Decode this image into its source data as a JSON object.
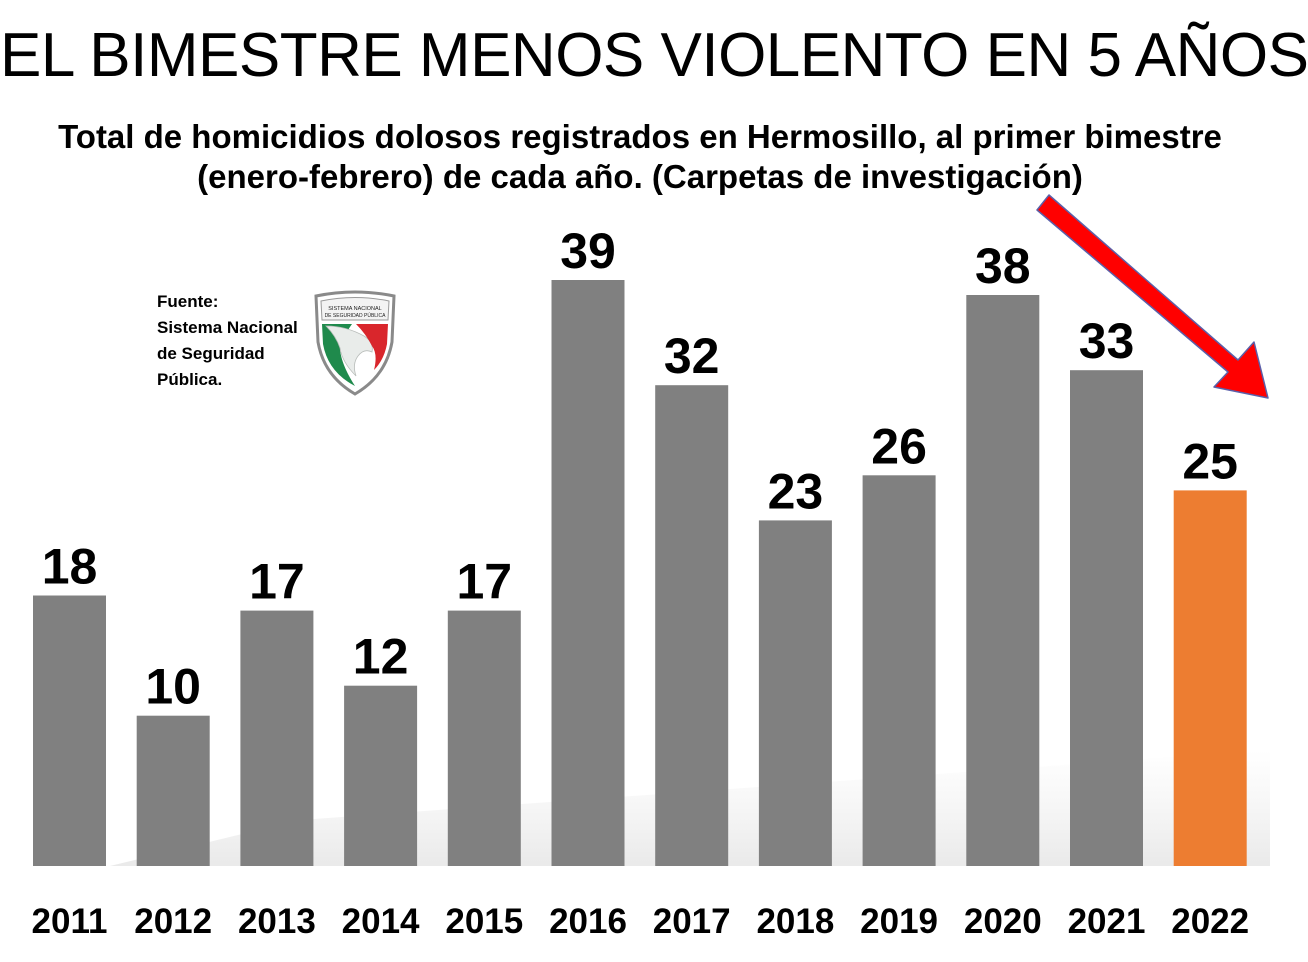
{
  "title": "EL BIMESTRE MENOS VIOLENTO EN 5 AÑOS",
  "subtitle": "Total de homicidios dolosos registrados en Hermosillo, al primer bimestre (enero-febrero) de cada año. (Carpetas de investigación)",
  "source": {
    "lines": [
      "Fuente:",
      "Sistema Nacional",
      "de Seguridad",
      "Pública."
    ],
    "logo_text": "SISTEMA NACIONAL DE SEGURIDAD PÚBLICA"
  },
  "colors": {
    "bar": "#808080",
    "highlight": "#ed7d31",
    "arrow": "#ff0000",
    "arrow_outline": "#5b5fa8"
  },
  "chart_data": {
    "type": "bar",
    "title": "EL BIMESTRE MENOS VIOLENTO EN 5 AÑOS",
    "categories": [
      "2011",
      "2012",
      "2013",
      "2014",
      "2015",
      "2016",
      "2017",
      "2018",
      "2019",
      "2020",
      "2021",
      "2022"
    ],
    "values": [
      18,
      10,
      17,
      12,
      17,
      39,
      32,
      23,
      26,
      38,
      33,
      25
    ],
    "highlight_index": 11,
    "xlabel": "",
    "ylabel": "",
    "ylim": [
      0,
      39
    ],
    "grid": false,
    "data_labels": true,
    "annotation": "red downward arrow pointing to 2022"
  }
}
